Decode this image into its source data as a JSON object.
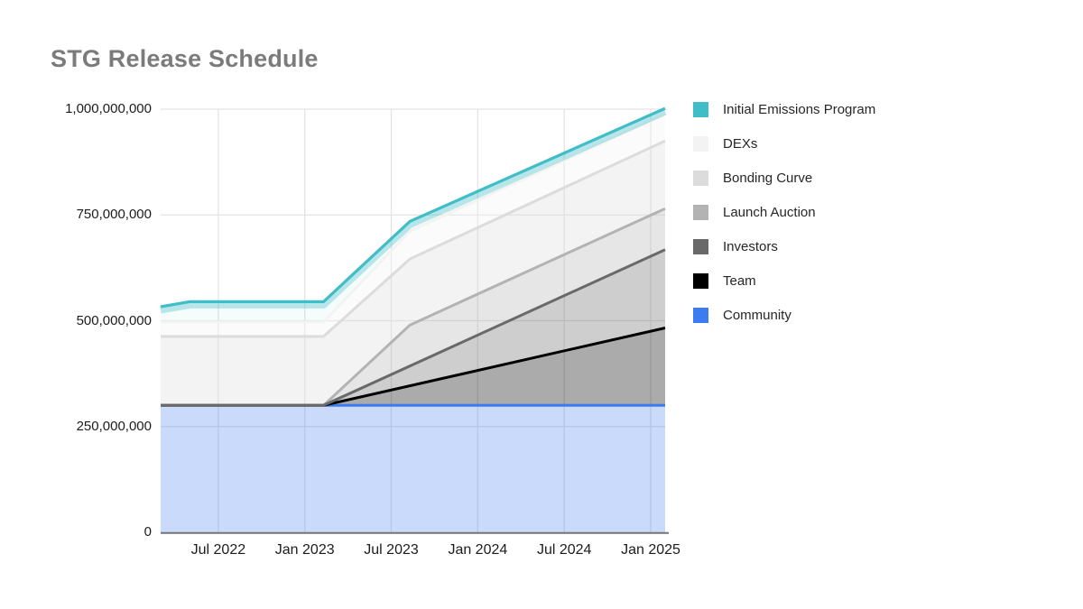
{
  "title": "STG Release Schedule",
  "chart_data": {
    "type": "area",
    "stacked": true,
    "title": "STG Release Schedule",
    "unit": "STG tokens",
    "grid": true,
    "legend_position": "right",
    "x_axis": {
      "tick_labels": [
        "Jul 2022",
        "Jan 2023",
        "Jul 2023",
        "Jan 2024",
        "Jul 2024",
        "Jan 2025"
      ],
      "tick_months": [
        4,
        10,
        16,
        22,
        28,
        34
      ],
      "domain_months": [
        0,
        35
      ],
      "domain_note": "plot spans approximately Mar 2022 to Feb 2025"
    },
    "y_axis": {
      "tick_labels": [
        "0",
        "250,000,000",
        "500,000,000",
        "750,000,000",
        "1,000,000,000"
      ],
      "tick_values": [
        0,
        250000000,
        500000000,
        750000000,
        1000000000
      ],
      "ylim": [
        0,
        1000000000
      ]
    },
    "legend_order_top_to_bottom": [
      "Initial Emissions Program",
      "DEXs",
      "Bonding Curve",
      "Launch Auction",
      "Investors",
      "Team",
      "Community"
    ],
    "series_note": "series listed bottom-to-top of stack; values in millions of STG; top_boundary = cumulative stacked total at that month",
    "series": [
      {
        "name": "Community",
        "slug": "community",
        "line_color": "#3d7bf0",
        "fill_color": "rgba(61,123,240,0.28)",
        "values_at_ticks_millions": [
          300,
          300,
          300,
          300,
          300,
          300
        ],
        "top_boundary_keypoints_millions": [
          [
            0,
            300
          ],
          [
            35,
            300
          ]
        ]
      },
      {
        "name": "Team",
        "slug": "team",
        "line_color": "#000000",
        "fill_color": "rgba(0,0,0,0.33)",
        "values_at_ticks_millions": [
          0,
          0,
          36,
          83,
          129,
          175
        ],
        "top_boundary_keypoints_millions": [
          [
            0,
            300
          ],
          [
            11.3,
            300
          ],
          [
            35,
            483
          ]
        ]
      },
      {
        "name": "Investors",
        "slug": "investors",
        "line_color": "#696969",
        "fill_color": "rgba(105,105,105,0.33)",
        "values_at_ticks_millions": [
          0,
          0,
          37,
          84,
          130,
          177
        ],
        "top_boundary_keypoints_millions": [
          [
            0,
            300
          ],
          [
            11.3,
            300
          ],
          [
            35,
            668
          ]
        ]
      },
      {
        "name": "Launch Auction",
        "slug": "launch-auction",
        "line_color": "#b3b3b3",
        "fill_color": "rgba(179,179,179,0.33)",
        "values_at_ticks_millions": [
          0,
          0,
          76,
          97,
          97,
          97
        ],
        "top_boundary_keypoints_millions": [
          [
            0,
            300
          ],
          [
            11.3,
            300
          ],
          [
            17.3,
            490
          ],
          [
            35,
            765
          ]
        ]
      },
      {
        "name": "Bonding Curve",
        "slug": "bonding-curve",
        "line_color": "#dcdcdc",
        "fill_color": "rgba(220,220,220,0.35)",
        "values_at_ticks_millions": [
          163,
          163,
          158,
          157,
          159,
          160
        ],
        "top_boundary_keypoints_millions": [
          [
            0,
            463
          ],
          [
            11.3,
            463
          ],
          [
            17.3,
            646
          ],
          [
            35,
            925
          ]
        ]
      },
      {
        "name": "DEXs",
        "slug": "dexs",
        "line_color": "#f3f3f3",
        "fill_color": "rgba(243,243,243,0.35)",
        "values_at_ticks_millions": [
          34,
          34,
          59,
          65,
          64,
          63
        ],
        "top_boundary_keypoints_millions": [
          [
            0,
            497
          ],
          [
            11.3,
            497
          ],
          [
            17.3,
            712
          ],
          [
            35,
            988
          ]
        ]
      },
      {
        "name": "Initial Emissions Program",
        "slug": "initial-emissions-program",
        "line_color": "#41bdc7",
        "fill_color": "rgba(65,189,199,0.05)",
        "values_at_ticks_millions": [
          48,
          48,
          28,
          20,
          16,
          13
        ],
        "top_boundary_keypoints_millions": [
          [
            0,
            533
          ],
          [
            2,
            545
          ],
          [
            11.3,
            545
          ],
          [
            17.3,
            735
          ],
          [
            35,
            1002
          ]
        ]
      }
    ],
    "style": {
      "grid_color": "#e3e3e3",
      "axis_line_color": "#757575",
      "tick_text_color": "#1c1c1c",
      "title_text_color": "#7b7b7b",
      "legend_text_color": "#262626",
      "glow_color": "rgba(65,189,199,0.35)"
    }
  }
}
